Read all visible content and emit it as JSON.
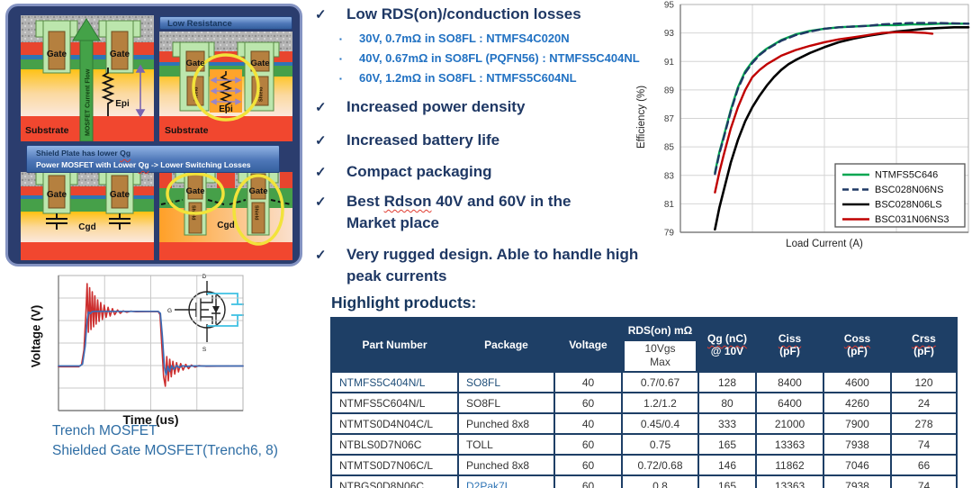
{
  "colors": {
    "navy_text": "#1F3864",
    "table_navy": "#1E3F66",
    "bullet_blue": "#2272C3",
    "caption_blue": "#2E6DA4",
    "wavy_red": "#E03C31",
    "diagram_frame": "#2B3D6E",
    "series_green": "#00A651",
    "series_navy": "#1F3864",
    "series_black": "#000000",
    "series_red": "#C00000",
    "trace_red": "#CC2E2E",
    "trace_blue": "#3C6CB5",
    "capacitor_cyan": "#3FC1E3"
  },
  "diagram": {
    "p2_header": "Low Resistance",
    "bottom_header_line1_parts": [
      {
        "t": "Shield Plate has lower "
      },
      {
        "t": "Qg",
        "wavy": true
      }
    ],
    "bottom_header_line2_parts": [
      {
        "t": "Power MOSFET with Lower "
      },
      {
        "t": "Qg",
        "wavy": true
      },
      {
        "t": " -> Lower Switching Losses"
      }
    ],
    "labels": {
      "gate": "Gate",
      "epi": "Epi",
      "substrate": "Substrate",
      "cgd": "Cgd",
      "shield": "Shield",
      "current_flow": "MOSFET Current Flow"
    }
  },
  "waveform": {
    "symbol": {
      "d": "D",
      "g": "G",
      "s": "S"
    }
  },
  "bullets": {
    "check": "✓",
    "square": "▪",
    "items": [
      {
        "parts": [
          {
            "t": "Low RDS(on)/conduction losses"
          }
        ],
        "subs": [
          "30V, 0.7mΩ in SO8FL : NTMFS4C020N",
          "40V, 0.67mΩ in SO8FL (PQFN56) : NTMFS5C404NL",
          "60V, 1.2mΩ in SO8FL : NTMFS5C604NL"
        ]
      },
      {
        "parts": [
          {
            "t": "Increased power density"
          }
        ]
      },
      {
        "parts": [
          {
            "t": "Increased battery life"
          }
        ]
      },
      {
        "parts": [
          {
            "t": "Compact packaging"
          }
        ]
      },
      {
        "parts": [
          {
            "t": "Best "
          },
          {
            "t": "Rdson",
            "wavy": true
          },
          {
            "t": " 40V and 60V in the Market place"
          }
        ]
      },
      {
        "parts": [
          {
            "t": "Very rugged design.  Able to  handle high peak currents"
          }
        ]
      }
    ]
  },
  "table": {
    "title": "Highlight products:",
    "columns": [
      {
        "lines": [
          {
            "t": "Part Number"
          }
        ]
      },
      {
        "lines": [
          {
            "t": "Package"
          }
        ]
      },
      {
        "lines": [
          {
            "t": "Voltage"
          }
        ]
      },
      {
        "lines": [
          {
            "t": "RDS(on) mΩ"
          }
        ],
        "sub": [
          "10Vgs",
          "Max"
        ]
      },
      {
        "lines": [
          {
            "t": "Qg (nC)",
            "wavy": true
          },
          {
            "t": "@ 10V"
          }
        ]
      },
      {
        "lines": [
          {
            "t": "Ciss",
            "wavy": true
          },
          {
            "t": "(pF)"
          }
        ]
      },
      {
        "lines": [
          {
            "t": "Coss",
            "wavy": true
          },
          {
            "t": "(pF)"
          }
        ]
      },
      {
        "lines": [
          {
            "t": "Crss",
            "wavy": true
          },
          {
            "t": "(pF)"
          }
        ]
      }
    ],
    "rows": [
      {
        "cells": [
          "NTMFS5C404N/L",
          "SO8FL",
          "40",
          "0.7/0.67",
          "128",
          "8400",
          "4600",
          "120"
        ],
        "blue": [
          0,
          1
        ],
        "blue_class": "c-blue1"
      },
      {
        "cells": [
          "NTMFS5C604N/L",
          "SO8FL",
          "60",
          "1.2/1.2",
          "80",
          "6400",
          "4260",
          "24"
        ],
        "blue": [],
        "blue_class": ""
      },
      {
        "cells": [
          "NTMTS0D4N04C/L",
          "Punched 8x8",
          "40",
          "0.45/0.4",
          "333",
          "21000",
          "7900",
          "278"
        ],
        "blue": [],
        "blue_class": ""
      },
      {
        "cells": [
          "NTBLS0D7N06C",
          "TOLL",
          "60",
          "0.75",
          "165",
          "13363",
          "7938",
          "74"
        ],
        "blue": [],
        "blue_class": ""
      },
      {
        "cells": [
          "NTMTS0D7N06C/L",
          "Punched 8x8",
          "60",
          "0.72/0.68",
          "146",
          "11862",
          "7046",
          "66"
        ],
        "blue": [],
        "blue_class": ""
      },
      {
        "cells": [
          "NTBGS0D8N06C",
          "D2Pak7L",
          "60",
          "0.8",
          "165",
          "13363",
          "7938",
          "74"
        ],
        "blue": [
          1
        ],
        "blue_class": "c-blue2"
      }
    ]
  },
  "chart_data": [
    {
      "id": "efficiency",
      "type": "line",
      "title": "",
      "xlabel": "Load Current (A)",
      "ylabel": "Efficiency (%)",
      "xlim": [
        0,
        20
      ],
      "ylim": [
        79,
        95
      ],
      "xticks": [
        0,
        5,
        10,
        15,
        20
      ],
      "yticks": [
        79,
        81,
        83,
        85,
        87,
        89,
        91,
        93,
        95
      ],
      "grid": true,
      "show_tick_labels": true,
      "legend": true,
      "legend_position": "bottom-right",
      "series": [
        {
          "name": "NTMFS5C646",
          "color": "#00A651",
          "dash": false,
          "width": 2.4,
          "points": [
            [
              2.4,
              83.2
            ],
            [
              2.7,
              84.6
            ],
            [
              3,
              85.7
            ],
            [
              3.5,
              87.6
            ],
            [
              4,
              89.2
            ],
            [
              4.5,
              90.3
            ],
            [
              5,
              91.0
            ],
            [
              5.5,
              91.5
            ],
            [
              6,
              91.9
            ],
            [
              6.5,
              92.2
            ],
            [
              7,
              92.5
            ],
            [
              7.5,
              92.7
            ],
            [
              8,
              92.9
            ],
            [
              9,
              93.15
            ],
            [
              10,
              93.3
            ],
            [
              11,
              93.4
            ],
            [
              12,
              93.45
            ],
            [
              13,
              93.5
            ],
            [
              14,
              93.55
            ],
            [
              15,
              93.55
            ],
            [
              16,
              93.6
            ],
            [
              17,
              93.6
            ],
            [
              18,
              93.65
            ],
            [
              19,
              93.65
            ],
            [
              20,
              93.65
            ]
          ]
        },
        {
          "name": "BSC028N06NS",
          "color": "#1F3864",
          "dash": true,
          "width": 2.4,
          "points": [
            [
              2.4,
              83.1
            ],
            [
              2.7,
              84.5
            ],
            [
              3,
              85.6
            ],
            [
              3.5,
              87.5
            ],
            [
              4,
              89.1
            ],
            [
              4.5,
              90.2
            ],
            [
              5,
              90.9
            ],
            [
              5.5,
              91.45
            ],
            [
              6,
              91.85
            ],
            [
              6.5,
              92.15
            ],
            [
              7,
              92.45
            ],
            [
              7.5,
              92.65
            ],
            [
              8,
              92.85
            ],
            [
              9,
              93.1
            ],
            [
              10,
              93.3
            ],
            [
              11,
              93.4
            ],
            [
              12,
              93.45
            ],
            [
              13,
              93.5
            ],
            [
              14,
              93.6
            ],
            [
              15,
              93.65
            ],
            [
              16,
              93.7
            ],
            [
              17,
              93.7
            ],
            [
              18,
              93.7
            ],
            [
              19,
              93.68
            ],
            [
              20,
              93.65
            ]
          ]
        },
        {
          "name": "BSC028N06LS",
          "color": "#000000",
          "dash": false,
          "width": 2.6,
          "points": [
            [
              2.4,
              79.2
            ],
            [
              2.7,
              80.7
            ],
            [
              3,
              81.9
            ],
            [
              3.5,
              83.9
            ],
            [
              4,
              85.5
            ],
            [
              4.5,
              86.8
            ],
            [
              5,
              87.8
            ],
            [
              5.5,
              88.6
            ],
            [
              6,
              89.3
            ],
            [
              6.5,
              89.9
            ],
            [
              7,
              90.4
            ],
            [
              7.5,
              90.8
            ],
            [
              8,
              91.1
            ],
            [
              9,
              91.6
            ],
            [
              10,
              92.0
            ],
            [
              11,
              92.35
            ],
            [
              12,
              92.6
            ],
            [
              13,
              92.8
            ],
            [
              14,
              92.95
            ],
            [
              15,
              93.1
            ],
            [
              16,
              93.2
            ],
            [
              17,
              93.3
            ],
            [
              18,
              93.35
            ],
            [
              19,
              93.4
            ],
            [
              20,
              93.4
            ]
          ]
        },
        {
          "name": "BSC031N06NS3",
          "color": "#C00000",
          "dash": false,
          "width": 2.4,
          "points": [
            [
              2.4,
              81.8
            ],
            [
              2.7,
              83.2
            ],
            [
              3,
              84.4
            ],
            [
              3.5,
              86.3
            ],
            [
              4,
              87.8
            ],
            [
              4.5,
              89.0
            ],
            [
              5,
              89.9
            ],
            [
              5.5,
              90.4
            ],
            [
              6,
              90.8
            ],
            [
              6.5,
              91.1
            ],
            [
              7,
              91.4
            ],
            [
              7.5,
              91.6
            ],
            [
              8,
              91.8
            ],
            [
              9,
              92.1
            ],
            [
              10,
              92.35
            ],
            [
              11,
              92.55
            ],
            [
              12,
              92.7
            ],
            [
              13,
              92.85
            ],
            [
              14,
              93.0
            ],
            [
              15,
              93.05
            ],
            [
              16,
              93.05
            ],
            [
              17,
              93.0
            ],
            [
              17.5,
              92.95
            ]
          ]
        }
      ]
    },
    {
      "id": "waveform",
      "type": "line",
      "xlabel": "Time (us)",
      "ylabel": "Voltage (V)",
      "xlim": [
        0,
        1
      ],
      "ylim": [
        0,
        1
      ],
      "y_from_top": true,
      "grid_divs": {
        "x": 4,
        "y": 6
      },
      "show_tick_labels": false,
      "legend": false,
      "series": [
        {
          "name": "Trench MOSFET",
          "color": "#CC2E2E",
          "width": 1.6,
          "points": [
            [
              0,
              0.675
            ],
            [
              0.11,
              0.675
            ],
            [
              0.125,
              0.66
            ],
            [
              0.138,
              0.55
            ],
            [
              0.148,
              0.3
            ],
            [
              0.155,
              0.06
            ],
            [
              0.162,
              0.42
            ],
            [
              0.169,
              0.09
            ],
            [
              0.176,
              0.4
            ],
            [
              0.183,
              0.12
            ],
            [
              0.19,
              0.38
            ],
            [
              0.197,
              0.15
            ],
            [
              0.204,
              0.36
            ],
            [
              0.212,
              0.18
            ],
            [
              0.22,
              0.34
            ],
            [
              0.229,
              0.2
            ],
            [
              0.238,
              0.325
            ],
            [
              0.248,
              0.22
            ],
            [
              0.258,
              0.31
            ],
            [
              0.269,
              0.235
            ],
            [
              0.28,
              0.3
            ],
            [
              0.292,
              0.245
            ],
            [
              0.305,
              0.29
            ],
            [
              0.32,
              0.255
            ],
            [
              0.335,
              0.28
            ],
            [
              0.35,
              0.262
            ],
            [
              0.37,
              0.272
            ],
            [
              0.39,
              0.264
            ],
            [
              0.42,
              0.268
            ],
            [
              0.54,
              0.266
            ],
            [
              0.55,
              0.29
            ],
            [
              0.56,
              0.52
            ],
            [
              0.57,
              0.75
            ],
            [
              0.579,
              0.82
            ],
            [
              0.587,
              0.6
            ],
            [
              0.595,
              0.78
            ],
            [
              0.603,
              0.62
            ],
            [
              0.611,
              0.75
            ],
            [
              0.62,
              0.635
            ],
            [
              0.63,
              0.73
            ],
            [
              0.64,
              0.645
            ],
            [
              0.65,
              0.714
            ],
            [
              0.662,
              0.652
            ],
            [
              0.675,
              0.7
            ],
            [
              0.69,
              0.658
            ],
            [
              0.705,
              0.69
            ],
            [
              0.72,
              0.663
            ],
            [
              0.74,
              0.678
            ],
            [
              0.76,
              0.667
            ],
            [
              0.8,
              0.672
            ],
            [
              1,
              0.67
            ]
          ]
        },
        {
          "name": "Shielded Gate MOSFET(Trench6, 8)",
          "color": "#3C6CB5",
          "width": 1.7,
          "points": [
            [
              0,
              0.67
            ],
            [
              0.115,
              0.67
            ],
            [
              0.13,
              0.655
            ],
            [
              0.145,
              0.52
            ],
            [
              0.155,
              0.33
            ],
            [
              0.163,
              0.27
            ],
            [
              0.172,
              0.282
            ],
            [
              0.182,
              0.268
            ],
            [
              0.2,
              0.265
            ],
            [
              0.54,
              0.265
            ],
            [
              0.552,
              0.28
            ],
            [
              0.563,
              0.45
            ],
            [
              0.574,
              0.68
            ],
            [
              0.583,
              0.735
            ],
            [
              0.592,
              0.672
            ],
            [
              0.602,
              0.71
            ],
            [
              0.613,
              0.668
            ],
            [
              0.625,
              0.695
            ],
            [
              0.64,
              0.666
            ],
            [
              0.655,
              0.682
            ],
            [
              0.672,
              0.668
            ],
            [
              0.69,
              0.674
            ],
            [
              0.72,
              0.67
            ],
            [
              1,
              0.67
            ]
          ]
        }
      ]
    }
  ]
}
